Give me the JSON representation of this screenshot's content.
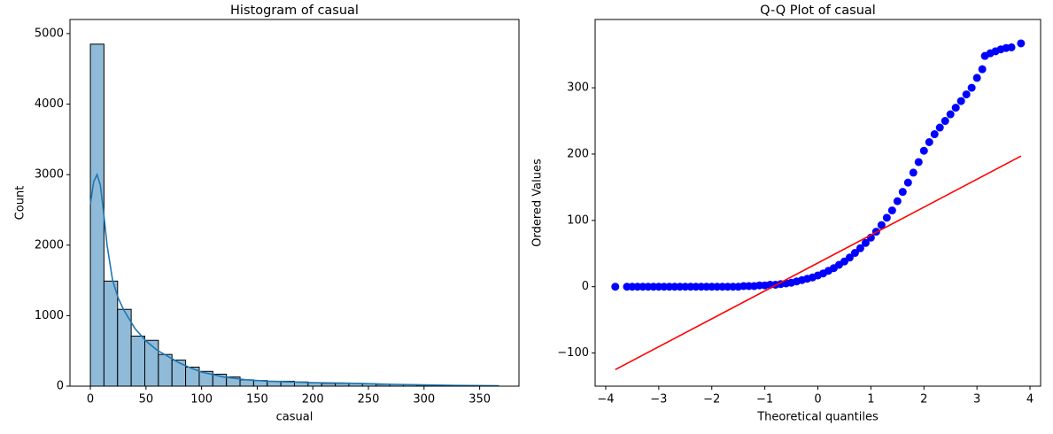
{
  "chart_data": [
    {
      "type": "histogram",
      "title": "Histogram of casual",
      "xlabel": "casual",
      "ylabel": "Count",
      "bins": [
        0,
        12.23,
        24.47,
        36.7,
        48.93,
        61.17,
        73.4,
        85.63,
        97.87,
        110.1,
        122.33,
        134.57,
        146.8,
        159.03,
        171.27,
        183.5,
        195.73,
        207.97,
        220.2,
        232.43,
        244.67,
        256.9,
        269.13,
        281.37,
        293.6,
        305.83,
        318.07,
        330.3,
        342.53,
        354.77,
        367
      ],
      "values": [
        4850,
        1490,
        1090,
        710,
        650,
        450,
        370,
        270,
        210,
        170,
        130,
        90,
        80,
        70,
        70,
        60,
        50,
        40,
        40,
        40,
        35,
        25,
        25,
        20,
        15,
        12,
        10,
        8,
        5,
        5
      ],
      "color": "#8fbbd9",
      "edgecolor": "#000000",
      "kde": {
        "color": "#1f77b4",
        "x": [
          0,
          3,
          6,
          9,
          12,
          15,
          20,
          25,
          30,
          40,
          50,
          60,
          70,
          80,
          90,
          100,
          120,
          140,
          160,
          180,
          200,
          225,
          250,
          275,
          300,
          330,
          367
        ],
        "values": [
          2580,
          2900,
          3000,
          2850,
          2450,
          2000,
          1500,
          1250,
          1080,
          820,
          640,
          510,
          420,
          330,
          260,
          200,
          130,
          90,
          70,
          60,
          50,
          45,
          35,
          25,
          18,
          10,
          5
        ]
      },
      "xlim": [
        -18.35,
        385.35
      ],
      "xticks": [
        0,
        50,
        100,
        150,
        200,
        250,
        300,
        350
      ],
      "ylim": [
        0,
        5200
      ],
      "yticks": [
        0,
        1000,
        2000,
        3000,
        4000,
        5000
      ]
    },
    {
      "type": "scatter",
      "title": "Q-Q Plot of casual",
      "xlabel": "Theoretical quantiles",
      "ylabel": "Ordered Values",
      "color": "#0000ff",
      "x": [
        -3.82,
        -3.6,
        -3.5,
        -3.4,
        -3.3,
        -3.2,
        -3.1,
        -3.0,
        -2.9,
        -2.8,
        -2.7,
        -2.6,
        -2.5,
        -2.4,
        -2.3,
        -2.2,
        -2.1,
        -2.0,
        -1.9,
        -1.8,
        -1.7,
        -1.6,
        -1.5,
        -1.4,
        -1.3,
        -1.2,
        -1.1,
        -1.0,
        -0.9,
        -0.8,
        -0.7,
        -0.6,
        -0.5,
        -0.4,
        -0.3,
        -0.2,
        -0.1,
        0,
        0.1,
        0.2,
        0.3,
        0.4,
        0.5,
        0.6,
        0.7,
        0.8,
        0.9,
        1.0,
        1.1,
        1.2,
        1.3,
        1.4,
        1.5,
        1.6,
        1.7,
        1.8,
        1.9,
        2.0,
        2.1,
        2.2,
        2.3,
        2.4,
        2.5,
        2.6,
        2.7,
        2.8,
        2.9,
        3.0,
        3.1,
        3.15,
        3.25,
        3.35,
        3.45,
        3.55,
        3.65,
        3.83
      ],
      "values": [
        0,
        0,
        0,
        0,
        0,
        0,
        0,
        0,
        0,
        0,
        0,
        0,
        0,
        0,
        0,
        0,
        0,
        0,
        0,
        0,
        0,
        0,
        0,
        1,
        1,
        1,
        2,
        2,
        3,
        3,
        4,
        5,
        6,
        8,
        10,
        12,
        14,
        17,
        20,
        24,
        28,
        33,
        38,
        44,
        51,
        58,
        66,
        74,
        83,
        93,
        104,
        115,
        129,
        143,
        157,
        172,
        188,
        205,
        218,
        230,
        240,
        250,
        260,
        270,
        280,
        290,
        300,
        315,
        328,
        348,
        352,
        355,
        358,
        360,
        361,
        367
      ],
      "fit_line": {
        "color": "#ff0000",
        "x": [
          -3.82,
          3.83
        ],
        "values": [
          -125,
          197
        ]
      },
      "xlim": [
        -4.2,
        4.2
      ],
      "xticks": [
        {
          "value": -4,
          "label": "−4"
        },
        {
          "value": -3,
          "label": "−3"
        },
        {
          "value": -2,
          "label": "−2"
        },
        {
          "value": -1,
          "label": "−1"
        },
        0,
        1,
        2,
        3,
        4
      ],
      "ylim": [
        -150,
        403
      ],
      "yticks": [
        {
          "value": -100,
          "label": "−100"
        },
        0,
        100,
        200,
        300
      ]
    }
  ]
}
